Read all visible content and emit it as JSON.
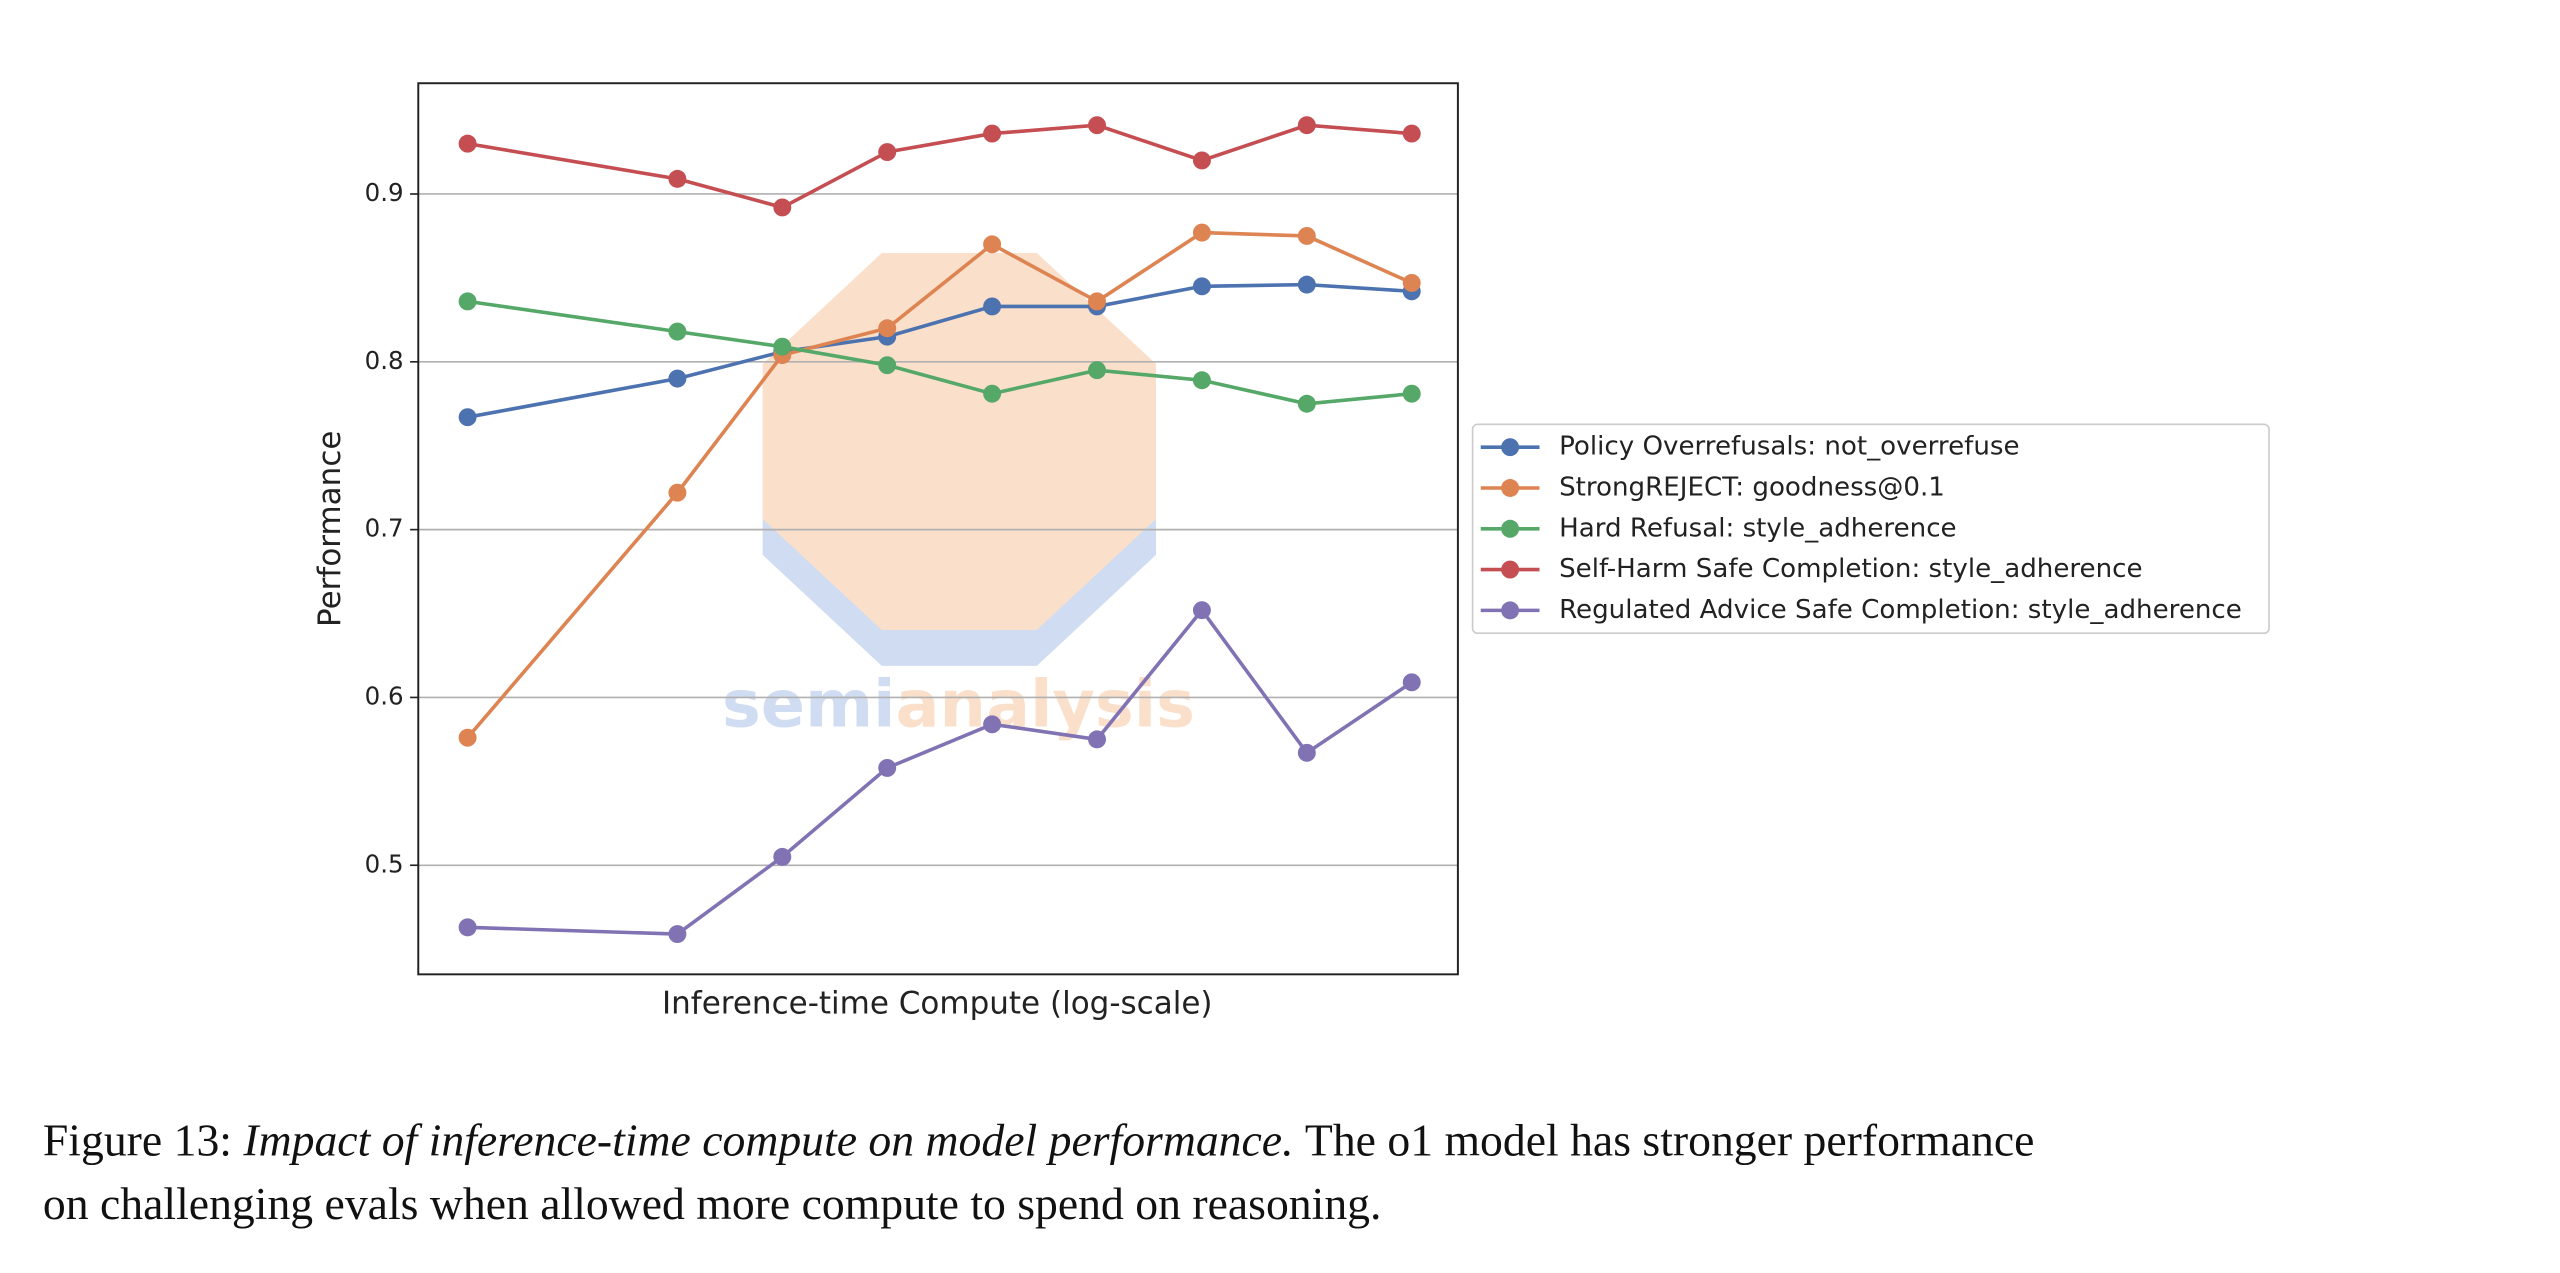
{
  "chart_data": {
    "type": "line",
    "ylabel": "Performance",
    "xlabel": "Inference-time Compute (log-scale)",
    "x": [
      0,
      2,
      3,
      4,
      5,
      6,
      7,
      8,
      9
    ],
    "xlim": [
      -0.47,
      9.44
    ],
    "ylim": [
      0.435,
      0.966
    ],
    "yticks": [
      0.5,
      0.6,
      0.7,
      0.8,
      0.9
    ],
    "grid": true,
    "legend": "right",
    "series": [
      {
        "name": "Policy Overrefusals: not_overrefuse",
        "color": "#4c72b0",
        "values": [
          0.767,
          0.79,
          0.806,
          0.815,
          0.833,
          0.833,
          0.845,
          0.846,
          0.842
        ]
      },
      {
        "name": "StrongREJECT: goodness@0.1",
        "color": "#dd8452",
        "values": [
          0.576,
          0.722,
          0.804,
          0.82,
          0.87,
          0.836,
          0.877,
          0.875,
          0.847
        ]
      },
      {
        "name": "Hard Refusal: style_adherence",
        "color": "#55a868",
        "values": [
          0.836,
          0.818,
          0.809,
          0.798,
          0.781,
          0.795,
          0.789,
          0.775,
          0.781
        ]
      },
      {
        "name": "Self-Harm Safe Completion: style_adherence",
        "color": "#c44e52",
        "values": [
          0.93,
          0.909,
          0.892,
          0.925,
          0.936,
          0.941,
          0.92,
          0.941,
          0.936
        ]
      },
      {
        "name": "Regulated Advice Safe Completion: style_adherence",
        "color": "#8172b3",
        "values": [
          0.463,
          0.459,
          0.505,
          0.558,
          0.584,
          0.575,
          0.652,
          0.567,
          0.609
        ]
      }
    ]
  },
  "watermark": [
    "semi",
    "analysis"
  ],
  "caption": {
    "label": "Figure 13:",
    "emphasis": "Impact of inference-time compute on model performance.",
    "line1": "The o1 model has stronger performance",
    "line2": "on challenging evals when allowed more compute to spend on reasoning."
  }
}
